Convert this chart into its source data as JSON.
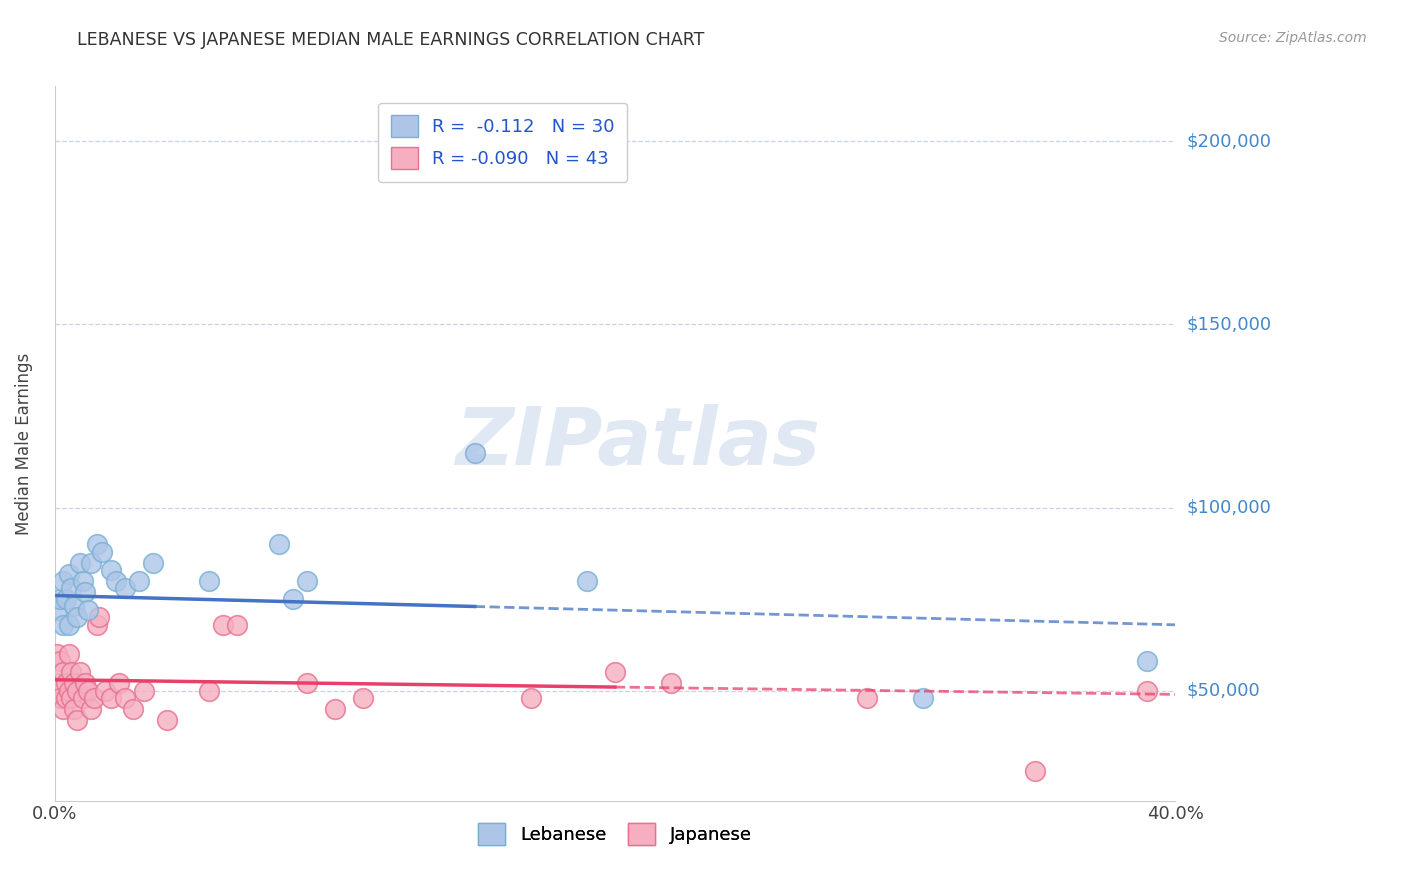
{
  "title": "LEBANESE VS JAPANESE MEDIAN MALE EARNINGS CORRELATION CHART",
  "source": "Source: ZipAtlas.com",
  "ylabel": "Median Male Earnings",
  "xlim": [
    0.0,
    0.4
  ],
  "ylim": [
    20000,
    215000
  ],
  "yticks": [
    50000,
    100000,
    150000,
    200000
  ],
  "ytick_labels": [
    "$50,000",
    "$100,000",
    "$150,000",
    "$200,000"
  ],
  "watermark_text": "ZIPatlas",
  "legend_r1": "R =  -0.112   N = 30",
  "legend_r2": "R = -0.090   N = 43",
  "lebanese_x": [
    0.001,
    0.002,
    0.003,
    0.003,
    0.004,
    0.005,
    0.005,
    0.006,
    0.007,
    0.008,
    0.009,
    0.01,
    0.011,
    0.012,
    0.013,
    0.015,
    0.017,
    0.02,
    0.022,
    0.025,
    0.03,
    0.035,
    0.055,
    0.08,
    0.085,
    0.09,
    0.15,
    0.19,
    0.31,
    0.39
  ],
  "lebanese_y": [
    72000,
    75000,
    68000,
    80000,
    75000,
    82000,
    68000,
    78000,
    73000,
    70000,
    85000,
    80000,
    77000,
    72000,
    85000,
    90000,
    88000,
    83000,
    80000,
    78000,
    80000,
    85000,
    80000,
    90000,
    75000,
    80000,
    115000,
    80000,
    48000,
    58000
  ],
  "japanese_x": [
    0.001,
    0.001,
    0.002,
    0.002,
    0.003,
    0.003,
    0.004,
    0.004,
    0.005,
    0.005,
    0.006,
    0.006,
    0.007,
    0.007,
    0.008,
    0.008,
    0.009,
    0.01,
    0.011,
    0.012,
    0.013,
    0.014,
    0.015,
    0.016,
    0.018,
    0.02,
    0.023,
    0.025,
    0.028,
    0.032,
    0.04,
    0.055,
    0.06,
    0.065,
    0.09,
    0.1,
    0.11,
    0.17,
    0.2,
    0.22,
    0.29,
    0.35,
    0.39
  ],
  "japanese_y": [
    60000,
    52000,
    58000,
    48000,
    55000,
    45000,
    52000,
    48000,
    60000,
    50000,
    55000,
    48000,
    52000,
    45000,
    50000,
    42000,
    55000,
    48000,
    52000,
    50000,
    45000,
    48000,
    68000,
    70000,
    50000,
    48000,
    52000,
    48000,
    45000,
    50000,
    42000,
    50000,
    68000,
    68000,
    52000,
    45000,
    48000,
    48000,
    55000,
    52000,
    48000,
    28000,
    50000
  ],
  "blue_color": "#adc6e8",
  "blue_edge": "#7aafd4",
  "pink_color": "#f5afc0",
  "pink_edge": "#e87090",
  "trend_blue": "#4472c4",
  "trend_pink": "#e8406a",
  "background_color": "#ffffff",
  "grid_color": "#c8d4e8",
  "title_color": "#333333",
  "right_label_color": "#4488cc",
  "trend_blue_start": 0.0,
  "trend_blue_split": 0.15,
  "trend_blue_end": 0.4,
  "trend_blue_y0": 76000,
  "trend_blue_y1": 68000,
  "trend_pink_start": 0.0,
  "trend_pink_split": 0.2,
  "trend_pink_end": 0.4,
  "trend_pink_y0": 53000,
  "trend_pink_y1": 49000
}
